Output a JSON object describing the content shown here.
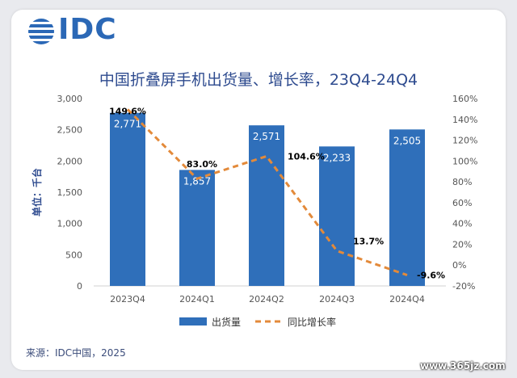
{
  "logo": {
    "text": "IDC"
  },
  "title": "中国折叠屏手机出货量、增长率，23Q4-24Q4",
  "source": "来源：IDC中国，2025",
  "watermark": "www.365jz.com",
  "colors": {
    "bar": "#2f6fba",
    "line": "#e38a3a",
    "title": "#2e4b8f"
  },
  "chart_data": {
    "type": "bar",
    "categories": [
      "2023Q4",
      "2024Q1",
      "2024Q2",
      "2024Q3",
      "2024Q4"
    ],
    "series": [
      {
        "name": "出货量",
        "type": "bar",
        "axis": "left",
        "values": [
          2771,
          1857,
          2571,
          2233,
          2505
        ],
        "labels": [
          "2,771",
          "1,857",
          "2,571",
          "2,233",
          "2,505"
        ]
      },
      {
        "name": "同比增长率",
        "type": "line",
        "axis": "right",
        "style": "dashed",
        "values": [
          149.6,
          83.0,
          104.6,
          13.7,
          -9.6
        ],
        "labels": [
          "149.6%",
          "83.0%",
          "104.6%",
          "13.7%",
          "-9.6%"
        ]
      }
    ],
    "ylabel": "单位：千台",
    "ylim": [
      0,
      3000
    ],
    "y_ticks": [
      "3,000",
      "2,500",
      "2,000",
      "1,500",
      "1,000",
      "500",
      "0"
    ],
    "y2lim": [
      -20,
      160
    ],
    "y2_ticks": [
      "160%",
      "140%",
      "120%",
      "100%",
      "80%",
      "60%",
      "40%",
      "20%",
      "0%",
      "-20%"
    ],
    "grid": false,
    "legend": "bottom"
  }
}
